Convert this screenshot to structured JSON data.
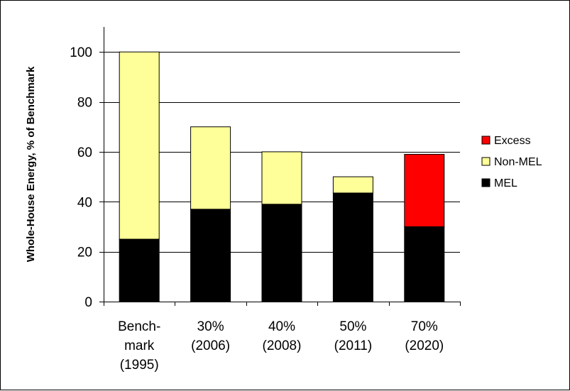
{
  "chart_data": {
    "type": "bar",
    "stacked": true,
    "categories": [
      [
        "Bench-",
        "mark",
        "(1995)"
      ],
      [
        "30%",
        "(2006)"
      ],
      [
        "40%",
        "(2008)"
      ],
      [
        "50%",
        "(2011)"
      ],
      [
        "70%",
        "(2020)"
      ]
    ],
    "series": [
      {
        "name": "MEL",
        "color": "#000000",
        "values": [
          25,
          37,
          39,
          43.5,
          30
        ]
      },
      {
        "name": "Non-MEL",
        "color": "#ffff99",
        "values": [
          75,
          33,
          21,
          6.5,
          0
        ]
      },
      {
        "name": "Excess",
        "color": "#ff0000",
        "values": [
          0,
          0,
          0,
          0,
          29
        ]
      }
    ],
    "legend_order": [
      "Excess",
      "Non-MEL",
      "MEL"
    ],
    "ylabel": "Whole-House Energy, % of Benchmark",
    "xlabel": "",
    "title": "",
    "ylim": [
      0,
      110
    ],
    "yticks": [
      0,
      20,
      40,
      60,
      80,
      100
    ],
    "grid": "horizontal",
    "legend_position": "right"
  }
}
